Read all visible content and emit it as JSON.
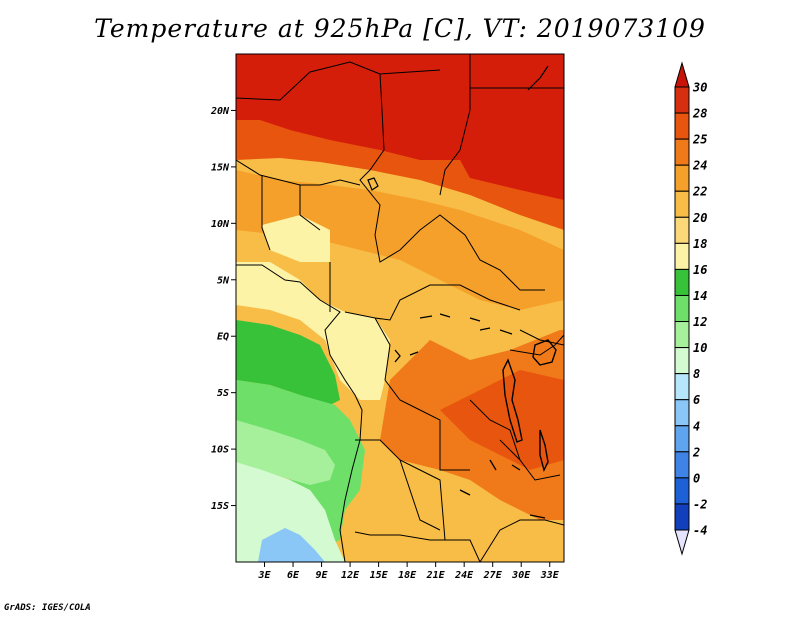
{
  "title": "Temperature at 925hPa [C], VT: 2019073109",
  "credit": "GrADS: IGES/COLA",
  "map": {
    "lon_range": [
      0,
      34.5
    ],
    "lat_range": [
      -20,
      25
    ],
    "lat_ticks": [
      {
        "value": 20,
        "label": "20N"
      },
      {
        "value": 15,
        "label": "15N"
      },
      {
        "value": 10,
        "label": "10N"
      },
      {
        "value": 5,
        "label": "5N"
      },
      {
        "value": 0,
        "label": "EQ"
      },
      {
        "value": -5,
        "label": "5S"
      },
      {
        "value": -10,
        "label": "10S"
      },
      {
        "value": -15,
        "label": "15S"
      }
    ],
    "lon_ticks": [
      {
        "value": 3,
        "label": "3E"
      },
      {
        "value": 6,
        "label": "6E"
      },
      {
        "value": 9,
        "label": "9E"
      },
      {
        "value": 12,
        "label": "12E"
      },
      {
        "value": 15,
        "label": "15E"
      },
      {
        "value": 18,
        "label": "18E"
      },
      {
        "value": 21,
        "label": "21E"
      },
      {
        "value": 24,
        "label": "24E"
      },
      {
        "value": 27,
        "label": "27E"
      },
      {
        "value": 30,
        "label": "30E"
      },
      {
        "value": 33,
        "label": "33E"
      }
    ]
  },
  "colorbar": {
    "levels": [
      {
        "label": "30",
        "color": "#d62f0f"
      },
      {
        "label": "28",
        "color": "#e8550f"
      },
      {
        "label": "25",
        "color": "#f07a1a"
      },
      {
        "label": "24",
        "color": "#f5a02a"
      },
      {
        "label": "22",
        "color": "#f8bd46"
      },
      {
        "label": "20",
        "color": "#fbd978"
      },
      {
        "label": "18",
        "color": "#fdf3a6"
      },
      {
        "label": "16",
        "color": "#37c23a"
      },
      {
        "label": "14",
        "color": "#6ee06a"
      },
      {
        "label": "12",
        "color": "#a6f09c"
      },
      {
        "label": "10",
        "color": "#d3fad0"
      },
      {
        "label": "8",
        "color": "#b6e6fb"
      },
      {
        "label": "6",
        "color": "#8ac6f6"
      },
      {
        "label": "4",
        "color": "#5fa4ef"
      },
      {
        "label": "2",
        "color": "#3f83e6"
      },
      {
        "label": "0",
        "color": "#1e60d6"
      },
      {
        "label": "-2",
        "color": "#123fbc"
      },
      {
        "label": "-4",
        "color": "#0b1e8c"
      }
    ],
    "top_color": "#c8130b",
    "bottom_color": "#e4e4fc"
  },
  "regions": [
    {
      "name": "north-hot",
      "color": "#d51e0a"
    },
    {
      "name": "sahel-warm",
      "color": "#e8550f"
    },
    {
      "name": "savanna",
      "color": "#f5a02a"
    },
    {
      "name": "central",
      "color": "#f8bd46"
    },
    {
      "name": "coast-pale",
      "color": "#fdf3a6"
    },
    {
      "name": "congo-green",
      "color": "#37c23a"
    },
    {
      "name": "angola-green",
      "color": "#6ee06a"
    },
    {
      "name": "namib-pale-green",
      "color": "#a6f09c"
    },
    {
      "name": "atlantic-cool",
      "color": "#d3fad0"
    },
    {
      "name": "atlantic-blue",
      "color": "#8ac6f6"
    },
    {
      "name": "east-warm",
      "color": "#f07a1a"
    }
  ]
}
